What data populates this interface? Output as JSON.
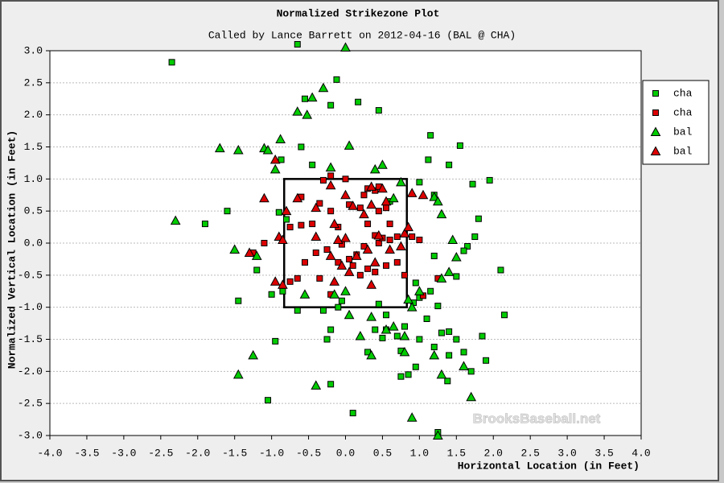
{
  "chart_data": {
    "type": "scatter",
    "title": "Normalized Strikezone Plot",
    "subtitle": "Called by Lance Barrett on 2012-04-16 (BAL @ CHA)",
    "x_label": "Horizontal Location (in Feet)",
    "y_label": "Normalized Vertical Location (in Feet)",
    "watermark": "BrooksBaseball.net",
    "xlim": [
      -4,
      4
    ],
    "ylim": [
      -3,
      3
    ],
    "xticks": [
      {
        "value": -4,
        "label": "-4.0"
      },
      -3.5,
      {
        "value": -3,
        "label": "-3.0"
      },
      -2.5,
      {
        "value": -2,
        "label": "-2.0"
      },
      -1.5,
      {
        "value": -1,
        "label": "-1.0"
      },
      -0.5,
      {
        "value": 0,
        "label": "0.0"
      },
      0.5,
      {
        "value": 1,
        "label": "1.0"
      },
      1.5,
      {
        "value": 2,
        "label": "2.0"
      },
      2.5,
      {
        "value": 3,
        "label": "3.0"
      },
      3.5,
      {
        "value": 4,
        "label": "4.0"
      }
    ],
    "yticks": [
      {
        "value": -3,
        "label": "-3.0"
      },
      -2.5,
      {
        "value": -2,
        "label": "-2.0"
      },
      -1.5,
      {
        "value": -1,
        "label": "-1.0"
      },
      -0.5,
      {
        "value": 0,
        "label": "0.0"
      },
      0.5,
      {
        "value": 1,
        "label": "1.0"
      },
      1.5,
      {
        "value": 2,
        "label": "2.0"
      },
      2.5,
      {
        "value": 3,
        "label": "3.0"
      }
    ],
    "grid": true,
    "legend": "right",
    "zone": {
      "x": [
        -0.83,
        0.83
      ],
      "y": [
        -1,
        1
      ]
    },
    "series": [
      {
        "name": "cha",
        "color": "#00cc00",
        "marker": "square",
        "x": [
          -2.35,
          -0.65,
          -0.55,
          -0.12,
          -0.2,
          0.17,
          0.45,
          1.15,
          1.55,
          1.12,
          1.4,
          -0.45,
          -0.87,
          1.72,
          1.95,
          1.0,
          -0.9,
          -1.6,
          -1.9,
          -0.8,
          0.6,
          1.2,
          1.8,
          1.75,
          1.65,
          1.6,
          2.1,
          1.5,
          1.2,
          0.95,
          1.0,
          1.15,
          0.92,
          1.25,
          2.15,
          1.1,
          1.3,
          1.2,
          1.0,
          0.55,
          0.7,
          0.8,
          0.5,
          0.4,
          0.3,
          0.75,
          0.95,
          0.85,
          0.75,
          1.4,
          1.5,
          1.85,
          1.9,
          1.7,
          1.38,
          -0.2,
          -0.25,
          -0.1,
          -0.65,
          -0.95,
          -1.0,
          -0.85,
          -1.45,
          -1.2,
          -1.05,
          -0.2,
          0.1,
          -0.3,
          0.45,
          1.25,
          1.6,
          1.4,
          0.55,
          -0.05,
          -0.6
        ],
        "y": [
          2.82,
          3.1,
          2.25,
          2.55,
          2.15,
          2.2,
          2.07,
          1.68,
          1.52,
          1.3,
          1.22,
          1.22,
          1.3,
          0.92,
          0.98,
          0.95,
          0.48,
          0.5,
          0.3,
          0.37,
          0.65,
          0.75,
          0.38,
          0.1,
          -0.05,
          -0.12,
          -0.42,
          -0.52,
          -0.2,
          -0.62,
          -0.85,
          -0.75,
          -0.93,
          -0.98,
          -1.12,
          -1.18,
          -1.4,
          -1.62,
          -1.5,
          -1.35,
          -1.45,
          -1.3,
          -1.48,
          -1.35,
          -1.7,
          -1.68,
          -1.93,
          -2.05,
          -2.08,
          -1.75,
          -1.5,
          -1.45,
          -1.83,
          -2.0,
          -2.15,
          -1.35,
          -1.5,
          -1.0,
          -1.05,
          -1.53,
          -0.8,
          -0.75,
          -0.9,
          -0.42,
          -2.45,
          -2.2,
          -2.65,
          -1.05,
          -0.95,
          -2.95,
          -1.7,
          -1.38,
          -1.12,
          -0.9,
          1.5
        ]
      },
      {
        "name": "cha",
        "color": "#dd0000",
        "marker": "square",
        "x": [
          -0.2,
          -0.3,
          0.0,
          0.3,
          0.4,
          0.45,
          0.25,
          0.05,
          -0.35,
          -0.6,
          -0.75,
          -0.6,
          -0.45,
          -0.2,
          0.2,
          0.45,
          0.55,
          0.3,
          -0.1,
          0.45,
          0.6,
          0.7,
          0.5,
          0.4,
          0.25,
          -0.25,
          -0.4,
          -0.55,
          -0.1,
          0.05,
          0.1,
          0.3,
          0.4,
          0.2,
          0.55,
          0.7,
          0.8,
          -0.35,
          -0.65,
          -0.75,
          0.9,
          1.0,
          1.25,
          1.05,
          -1.25,
          -1.1,
          -0.2,
          0.6,
          -0.05,
          0.15
        ],
        "y": [
          1.05,
          0.98,
          1.0,
          0.85,
          0.82,
          0.88,
          0.75,
          0.6,
          0.62,
          0.72,
          0.25,
          0.28,
          0.3,
          0.5,
          0.55,
          0.5,
          0.55,
          0.3,
          0.25,
          0.0,
          0.05,
          0.1,
          0.08,
          0.12,
          -0.05,
          -0.1,
          -0.15,
          -0.3,
          -0.3,
          -0.25,
          -0.35,
          -0.4,
          -0.45,
          -0.5,
          -0.35,
          -0.3,
          -0.5,
          -0.55,
          -0.55,
          -0.6,
          0.1,
          0.05,
          -0.55,
          -0.82,
          -0.15,
          0.0,
          -0.8,
          0.3,
          -0.02,
          -0.18
        ]
      },
      {
        "name": "bal",
        "color": "#00cc00",
        "marker": "triangle",
        "x": [
          0.0,
          -0.3,
          -0.45,
          -0.65,
          -0.52,
          -1.7,
          -1.45,
          -1.1,
          -1.05,
          -0.88,
          -0.95,
          0.05,
          0.5,
          0.4,
          -0.2,
          0.65,
          0.75,
          1.2,
          1.25,
          1.3,
          -2.3,
          1.45,
          -1.5,
          1.5,
          -1.2,
          1.4,
          1.0,
          0.9,
          0.85,
          1.3,
          0.35,
          0.2,
          0.8,
          0.55,
          0.65,
          0.8,
          1.2,
          1.6,
          1.3,
          1.7,
          0.9,
          1.25,
          -1.45,
          -1.25,
          0.35,
          -0.4,
          -0.55,
          0.0,
          -0.15,
          0.05
        ],
        "y": [
          3.05,
          2.42,
          2.27,
          2.05,
          2.0,
          1.48,
          1.45,
          1.48,
          1.45,
          1.62,
          1.15,
          1.52,
          1.22,
          1.15,
          1.18,
          0.7,
          0.95,
          0.72,
          0.65,
          0.45,
          0.35,
          0.05,
          -0.1,
          -0.22,
          -0.2,
          -0.45,
          -0.75,
          -1.0,
          -0.88,
          -0.55,
          -1.15,
          -1.45,
          -1.45,
          -1.35,
          -1.3,
          -1.7,
          -1.75,
          -1.92,
          -2.05,
          -2.4,
          -2.72,
          -3.0,
          -2.05,
          -1.75,
          -1.75,
          -2.22,
          -0.8,
          -0.75,
          -0.8,
          -1.12
        ]
      },
      {
        "name": "bal",
        "color": "#dd0000",
        "marker": "triangle",
        "x": [
          -0.95,
          -1.1,
          -0.65,
          -0.2,
          0.35,
          0.5,
          0.0,
          0.55,
          0.35,
          1.05,
          0.9,
          -0.9,
          -0.85,
          -0.8,
          -0.4,
          -0.15,
          0.25,
          0.1,
          0.45,
          0.6,
          0.0,
          -0.1,
          0.3,
          0.15,
          0.4,
          -0.05,
          -0.2,
          -1.3,
          -0.95,
          -0.85,
          0.35,
          0.05,
          -0.15,
          0.75,
          0.8,
          0.85,
          -0.4
        ],
        "y": [
          1.3,
          0.7,
          0.7,
          0.9,
          0.88,
          0.85,
          0.75,
          0.65,
          0.6,
          0.75,
          0.78,
          0.1,
          0.05,
          0.5,
          0.55,
          0.3,
          0.45,
          0.58,
          0.12,
          -0.1,
          0.08,
          0.05,
          -0.1,
          -0.2,
          -0.3,
          -0.35,
          -0.2,
          -0.15,
          -0.6,
          -0.65,
          -0.65,
          -0.45,
          -0.6,
          -0.05,
          0.15,
          0.25,
          0.1
        ]
      }
    ]
  }
}
